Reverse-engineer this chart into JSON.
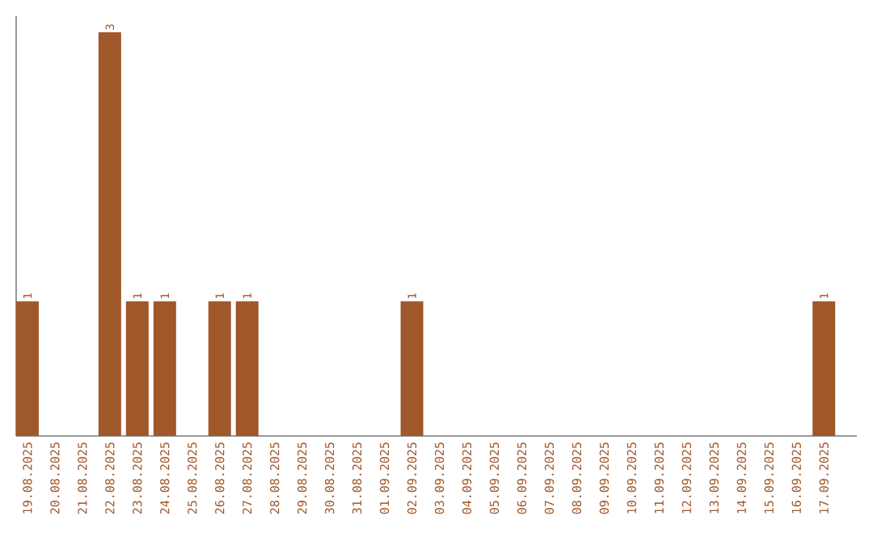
{
  "chart_data": {
    "type": "bar",
    "categories": [
      "19.08.2025",
      "20.08.2025",
      "21.08.2025",
      "22.08.2025",
      "23.08.2025",
      "24.08.2025",
      "25.08.2025",
      "26.08.2025",
      "27.08.2025",
      "28.08.2025",
      "29.08.2025",
      "30.08.2025",
      "31.08.2025",
      "01.09.2025",
      "02.09.2025",
      "03.09.2025",
      "04.09.2025",
      "05.09.2025",
      "06.09.2025",
      "07.09.2025",
      "08.09.2025",
      "09.09.2025",
      "10.09.2025",
      "11.09.2025",
      "12.09.2025",
      "13.09.2025",
      "14.09.2025",
      "15.09.2025",
      "16.09.2025",
      "17.09.2025"
    ],
    "values": [
      1,
      0,
      0,
      3,
      1,
      1,
      0,
      1,
      1,
      0,
      0,
      0,
      0,
      0,
      1,
      0,
      0,
      0,
      0,
      0,
      0,
      0,
      0,
      0,
      0,
      0,
      0,
      0,
      0,
      1
    ],
    "value_labels": [
      "1",
      null,
      null,
      "3",
      "1",
      "1",
      null,
      "1",
      "1",
      null,
      null,
      null,
      null,
      null,
      "1",
      null,
      null,
      null,
      null,
      null,
      null,
      null,
      null,
      null,
      null,
      null,
      null,
      null,
      null,
      "1"
    ],
    "color": "#a0572a"
  }
}
